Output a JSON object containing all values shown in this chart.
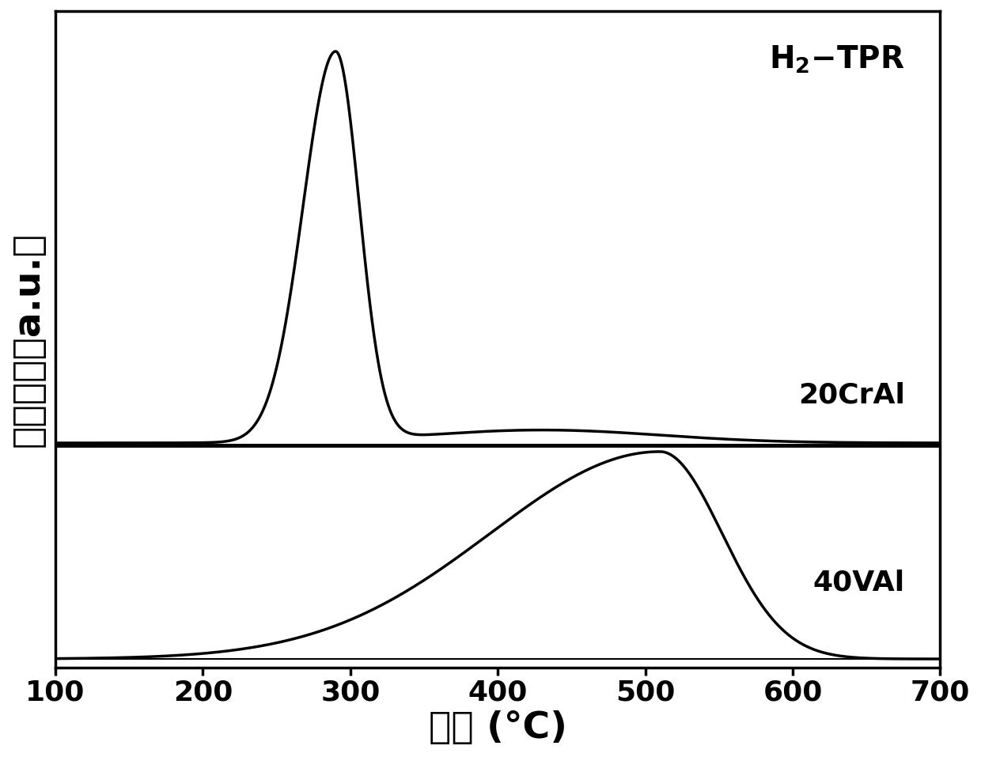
{
  "title_annotation": "H₂-TPR",
  "label_20CrAl": "20CrAl",
  "label_40VAl": "40VAl",
  "xlabel": "温度 (°C)",
  "ylabel": "信号强度（a.u.）",
  "xlim": [
    100,
    700
  ],
  "xticks": [
    100,
    200,
    300,
    400,
    500,
    600,
    700
  ],
  "background_color": "#ffffff",
  "line_color": "#000000",
  "linewidth": 2.5,
  "sep_linewidth": 3.5,
  "title_fontsize": 28,
  "label_fontsize": 26,
  "tick_fontsize": 26,
  "axis_label_fontsize": 34
}
